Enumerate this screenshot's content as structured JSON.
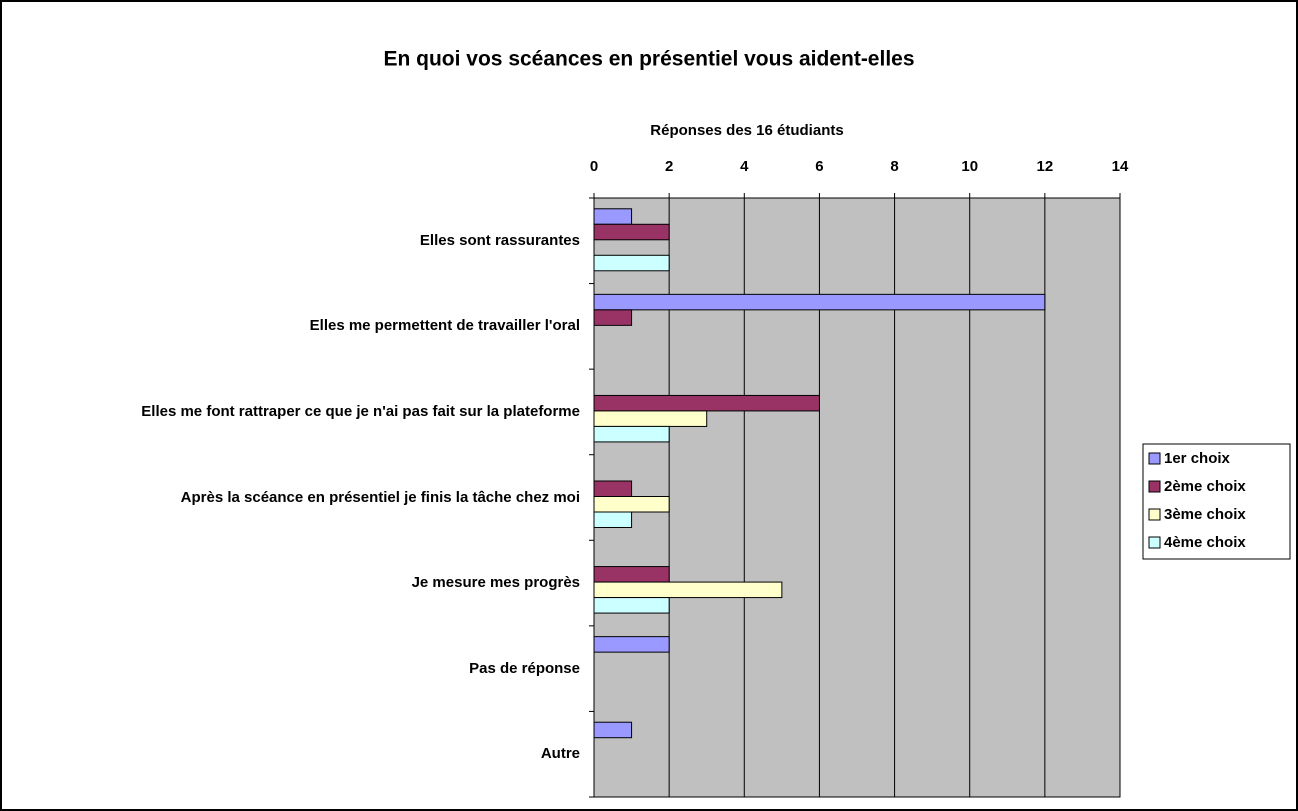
{
  "chart_data": {
    "type": "barh",
    "title": "En quoi vos scéances en présentiel vous aident-elles",
    "x_label": "Réponses des 16 étudiants",
    "categories": [
      "Elles sont rassurantes",
      "Elles me permettent de travailler l'oral",
      "Elles me font rattraper ce que je n'ai pas fait sur la plateforme",
      "Après la scéance en présentiel je finis la tâche chez moi",
      "Je mesure mes progrès",
      "Pas de réponse",
      "Autre"
    ],
    "series": [
      {
        "name": "1er choix",
        "color": "#9999ff",
        "values": [
          1,
          12,
          0,
          0,
          0,
          2,
          1
        ]
      },
      {
        "name": "2ème choix",
        "color": "#993366",
        "values": [
          2,
          1,
          6,
          1,
          2,
          0,
          0
        ]
      },
      {
        "name": "3ème choix",
        "color": "#ffffcc",
        "values": [
          0,
          0,
          3,
          2,
          5,
          0,
          0
        ]
      },
      {
        "name": "4ème choix",
        "color": "#ccffff",
        "values": [
          2,
          0,
          2,
          1,
          2,
          0,
          0
        ]
      }
    ],
    "xlim": [
      0,
      14
    ],
    "xticks": [
      0,
      2,
      4,
      6,
      8,
      10,
      12,
      14
    ],
    "grid": true,
    "legend": "right",
    "plot_background": "#c0c0c0"
  }
}
